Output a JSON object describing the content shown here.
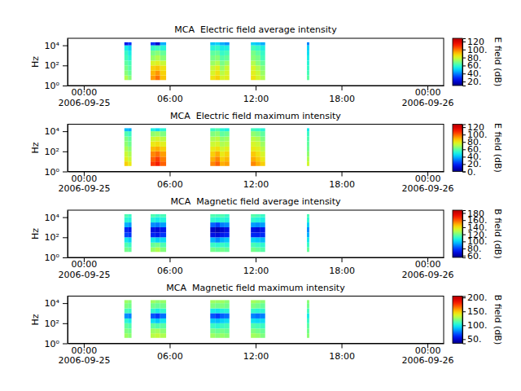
{
  "chart_data": [
    {
      "type": "heatmap",
      "title": "MCA  Electric field average intensity",
      "y_label": "Hz",
      "log": "y",
      "color": "jet",
      "xlim": [
        "2006-09-24T22:52",
        "2006-09-26T01:08"
      ],
      "xticks": [
        {
          "value": "2006-09-25T00:00",
          "label": "00:00\n2006-09-25"
        },
        {
          "value": "2006-09-25T06:00",
          "label": "06:00"
        },
        {
          "value": "2006-09-25T12:00",
          "label": "12:00"
        },
        {
          "value": "2006-09-25T18:00",
          "label": "18:00"
        },
        {
          "value": "2006-09-26T00:00",
          "label": "00:00\n2006-09-26"
        }
      ],
      "ylim": [
        1,
        50000
      ],
      "yticks": [
        {
          "value": 1,
          "label": "10⁰"
        },
        {
          "value": 100,
          "label": "10²"
        },
        {
          "value": 10000,
          "label": "10⁴"
        }
      ],
      "x": [
        "2006-09-25T02:50",
        "2006-09-25T03:05",
        "2006-09-25T04:40",
        "2006-09-25T05:00",
        "2006-09-25T05:20",
        "2006-09-25T08:50",
        "2006-09-25T09:10",
        "2006-09-25T09:30",
        "2006-09-25T09:50",
        "2006-09-25T11:40",
        "2006-09-25T12:00",
        "2006-09-25T12:20",
        "2006-09-25T15:35"
      ],
      "x_end": [
        "2006-09-25T03:05",
        "2006-09-25T03:20",
        "2006-09-25T05:00",
        "2006-09-25T05:20",
        "2006-09-25T05:45",
        "2006-09-25T09:10",
        "2006-09-25T09:30",
        "2006-09-25T09:50",
        "2006-09-25T10:10",
        "2006-09-25T12:00",
        "2006-09-25T12:20",
        "2006-09-25T12:40",
        "2006-09-25T15:45"
      ],
      "y_bins": [
        3.5,
        10,
        30,
        100,
        300,
        1000,
        3000,
        10000,
        20000
      ],
      "values": [
        [
          75,
          70,
          68,
          65,
          62,
          60,
          55,
          25
        ],
        [
          70,
          66,
          64,
          62,
          58,
          55,
          50,
          30
        ],
        [
          95,
          92,
          88,
          80,
          72,
          68,
          60,
          30
        ],
        [
          100,
          96,
          90,
          82,
          75,
          70,
          62,
          20
        ],
        [
          90,
          88,
          85,
          78,
          70,
          66,
          58,
          45
        ],
        [
          85,
          80,
          78,
          72,
          68,
          65,
          58,
          48
        ],
        [
          88,
          85,
          82,
          75,
          70,
          66,
          60,
          50
        ],
        [
          80,
          76,
          72,
          68,
          64,
          60,
          55,
          45
        ],
        [
          82,
          80,
          78,
          72,
          66,
          62,
          56,
          42
        ],
        [
          85,
          82,
          80,
          75,
          70,
          68,
          62,
          50
        ],
        [
          80,
          78,
          75,
          70,
          68,
          65,
          60,
          48
        ],
        [
          75,
          72,
          70,
          66,
          62,
          60,
          56,
          45
        ],
        [
          65,
          62,
          60,
          58,
          55,
          52,
          50,
          40
        ]
      ],
      "colorbar": {
        "label": "E field (dB)",
        "range": [
          10,
          128
        ],
        "ticks": [
          {
            "value": 20,
            "label": "20."
          },
          {
            "value": 40,
            "label": "40."
          },
          {
            "value": 60,
            "label": "60."
          },
          {
            "value": 80,
            "label": "80."
          },
          {
            "value": 100,
            "label": "100."
          },
          120
        ]
      }
    },
    {
      "type": "heatmap",
      "title": "MCA  Electric field maximum intensity",
      "y_label": "Hz",
      "log": "y",
      "color": "jet",
      "xlim": [
        "2006-09-24T22:52",
        "2006-09-26T01:08"
      ],
      "xticks": [
        {
          "value": "2006-09-25T00:00",
          "label": "00:00\n2006-09-25"
        },
        {
          "value": "2006-09-25T06:00",
          "label": "06:00"
        },
        {
          "value": "2006-09-25T12:00",
          "label": "12:00"
        },
        {
          "value": "2006-09-25T18:00",
          "label": "18:00"
        },
        {
          "value": "2006-09-26T00:00",
          "label": "00:00\n2006-09-26"
        }
      ],
      "ylim": [
        1,
        50000
      ],
      "yticks": [
        {
          "value": 1,
          "label": "10⁰"
        },
        {
          "value": 100,
          "label": "10²"
        },
        {
          "value": 10000,
          "label": "10⁴"
        }
      ],
      "x": [
        "2006-09-25T02:50",
        "2006-09-25T03:05",
        "2006-09-25T04:40",
        "2006-09-25T05:00",
        "2006-09-25T05:20",
        "2006-09-25T08:50",
        "2006-09-25T09:10",
        "2006-09-25T09:30",
        "2006-09-25T09:50",
        "2006-09-25T11:40",
        "2006-09-25T12:00",
        "2006-09-25T12:20",
        "2006-09-25T15:35"
      ],
      "x_end": [
        "2006-09-25T03:05",
        "2006-09-25T03:20",
        "2006-09-25T05:00",
        "2006-09-25T05:20",
        "2006-09-25T05:45",
        "2006-09-25T09:10",
        "2006-09-25T09:30",
        "2006-09-25T09:50",
        "2006-09-25T10:10",
        "2006-09-25T12:00",
        "2006-09-25T12:20",
        "2006-09-25T12:40",
        "2006-09-25T15:45"
      ],
      "y_bins": [
        3.5,
        10,
        30,
        100,
        300,
        1000,
        3000,
        10000,
        20000
      ],
      "values": [
        [
          85,
          78,
          74,
          70,
          66,
          64,
          58,
          40
        ],
        [
          80,
          74,
          70,
          66,
          62,
          60,
          55,
          38
        ],
        [
          105,
          100,
          95,
          88,
          80,
          74,
          66,
          50
        ],
        [
          110,
          105,
          98,
          90,
          82,
          76,
          68,
          45
        ],
        [
          100,
          96,
          92,
          85,
          78,
          72,
          64,
          52
        ],
        [
          95,
          90,
          85,
          80,
          74,
          70,
          64,
          55
        ],
        [
          100,
          95,
          90,
          82,
          76,
          72,
          66,
          58
        ],
        [
          90,
          85,
          80,
          75,
          70,
          66,
          60,
          52
        ],
        [
          92,
          88,
          84,
          78,
          72,
          68,
          62,
          50
        ],
        [
          95,
          90,
          86,
          80,
          76,
          72,
          66,
          56
        ],
        [
          90,
          86,
          82,
          78,
          74,
          70,
          64,
          54
        ],
        [
          85,
          80,
          76,
          72,
          68,
          64,
          60,
          52
        ],
        [
          75,
          70,
          66,
          62,
          60,
          58,
          55,
          48
        ]
      ],
      "colorbar": {
        "label": "E field (dB)",
        "range": [
          0,
          128
        ],
        "ticks": [
          {
            "value": 0,
            "label": "0."
          },
          {
            "value": 20,
            "label": "20."
          },
          {
            "value": 40,
            "label": "40."
          },
          {
            "value": 60,
            "label": "60."
          },
          {
            "value": 80,
            "label": "80."
          },
          {
            "value": 100,
            "label": "100."
          },
          120
        ]
      }
    },
    {
      "type": "heatmap",
      "title": "MCA  Magnetic field average intensity",
      "y_label": "Hz",
      "log": "y",
      "color": "jet",
      "xlim": [
        "2006-09-24T22:52",
        "2006-09-26T01:08"
      ],
      "xticks": [
        {
          "value": "2006-09-25T00:00",
          "label": "00:00\n2006-09-25"
        },
        {
          "value": "2006-09-25T06:00",
          "label": "06:00"
        },
        {
          "value": "2006-09-25T12:00",
          "label": "12:00"
        },
        {
          "value": "2006-09-25T18:00",
          "label": "18:00"
        },
        {
          "value": "2006-09-26T00:00",
          "label": "00:00\n2006-09-26"
        }
      ],
      "ylim": [
        1,
        50000
      ],
      "yticks": [
        {
          "value": 1,
          "label": "10⁰"
        },
        {
          "value": 100,
          "label": "10²"
        },
        {
          "value": 10000,
          "label": "10⁴"
        }
      ],
      "x": [
        "2006-09-25T02:50",
        "2006-09-25T03:05",
        "2006-09-25T04:40",
        "2006-09-25T05:00",
        "2006-09-25T05:20",
        "2006-09-25T08:50",
        "2006-09-25T09:10",
        "2006-09-25T09:30",
        "2006-09-25T09:50",
        "2006-09-25T11:40",
        "2006-09-25T12:00",
        "2006-09-25T12:20",
        "2006-09-25T15:35"
      ],
      "x_end": [
        "2006-09-25T03:05",
        "2006-09-25T03:20",
        "2006-09-25T05:00",
        "2006-09-25T05:20",
        "2006-09-25T05:45",
        "2006-09-25T09:10",
        "2006-09-25T09:30",
        "2006-09-25T09:50",
        "2006-09-25T10:10",
        "2006-09-25T12:00",
        "2006-09-25T12:20",
        "2006-09-25T12:40",
        "2006-09-25T15:45"
      ],
      "y_bins": [
        3.5,
        10,
        30,
        100,
        300,
        1000,
        3000,
        10000,
        20000
      ],
      "values": [
        [
          120,
          115,
          105,
          80,
          75,
          95,
          110,
          115
        ],
        [
          118,
          112,
          100,
          78,
          72,
          92,
          108,
          112
        ],
        [
          125,
          118,
          105,
          75,
          70,
          90,
          108,
          115
        ],
        [
          128,
          120,
          100,
          72,
          68,
          88,
          105,
          112
        ],
        [
          122,
          115,
          102,
          78,
          72,
          92,
          108,
          114
        ],
        [
          120,
          112,
          95,
          70,
          65,
          85,
          110,
          115
        ],
        [
          118,
          110,
          90,
          68,
          62,
          80,
          108,
          114
        ],
        [
          120,
          112,
          95,
          72,
          66,
          88,
          110,
          115
        ],
        [
          118,
          110,
          98,
          75,
          70,
          90,
          108,
          112
        ],
        [
          120,
          114,
          100,
          75,
          70,
          92,
          110,
          116
        ],
        [
          118,
          112,
          98,
          74,
          68,
          90,
          108,
          114
        ],
        [
          116,
          110,
          96,
          76,
          72,
          92,
          106,
          112
        ],
        [
          118,
          112,
          105,
          95,
          90,
          100,
          110,
          114
        ]
      ],
      "colorbar": {
        "label": "B field (dB)",
        "range": [
          55,
          188
        ],
        "ticks": [
          {
            "value": 60,
            "label": "60."
          },
          {
            "value": 80,
            "label": "80."
          },
          {
            "value": 100,
            "label": "100."
          },
          {
            "value": 120,
            "label": "120."
          },
          {
            "value": 140,
            "label": "140."
          },
          {
            "value": 160,
            "label": "160."
          },
          180
        ]
      }
    },
    {
      "type": "heatmap",
      "title": "MCA  Magnetic field maximum intensity",
      "y_label": "Hz",
      "log": "y",
      "color": "jet",
      "xlim": [
        "2006-09-24T22:52",
        "2006-09-26T01:08"
      ],
      "xticks": [
        {
          "value": "2006-09-25T00:00",
          "label": "00:00\n2006-09-25"
        },
        {
          "value": "2006-09-25T06:00",
          "label": "06:00"
        },
        {
          "value": "2006-09-25T12:00",
          "label": "12:00"
        },
        {
          "value": "2006-09-25T18:00",
          "label": "18:00"
        },
        {
          "value": "2006-09-26T00:00",
          "label": "00:00\n2006-09-26"
        }
      ],
      "ylim": [
        1,
        50000
      ],
      "yticks": [
        {
          "value": 1,
          "label": "10⁰"
        },
        {
          "value": 100,
          "label": "10²"
        },
        {
          "value": 10000,
          "label": "10⁴"
        }
      ],
      "x": [
        "2006-09-25T02:50",
        "2006-09-25T03:05",
        "2006-09-25T04:40",
        "2006-09-25T05:00",
        "2006-09-25T05:20",
        "2006-09-25T08:50",
        "2006-09-25T09:10",
        "2006-09-25T09:30",
        "2006-09-25T09:50",
        "2006-09-25T11:40",
        "2006-09-25T12:00",
        "2006-09-25T12:20",
        "2006-09-25T15:35"
      ],
      "x_end": [
        "2006-09-25T03:05",
        "2006-09-25T03:20",
        "2006-09-25T05:00",
        "2006-09-25T05:20",
        "2006-09-25T05:45",
        "2006-09-25T09:10",
        "2006-09-25T09:30",
        "2006-09-25T09:50",
        "2006-09-25T10:10",
        "2006-09-25T12:00",
        "2006-09-25T12:20",
        "2006-09-25T12:40",
        "2006-09-25T15:45"
      ],
      "y_bins": [
        3.5,
        10,
        30,
        100,
        300,
        1000,
        3000,
        10000,
        20000
      ],
      "values": [
        [
          125,
          120,
          115,
          105,
          80,
          110,
          120,
          125
        ],
        [
          122,
          118,
          112,
          100,
          78,
          108,
          118,
          122
        ],
        [
          130,
          125,
          115,
          95,
          70,
          105,
          118,
          125
        ],
        [
          132,
          126,
          112,
          90,
          65,
          100,
          116,
          122
        ],
        [
          128,
          122,
          114,
          98,
          75,
          106,
          118,
          124
        ],
        [
          125,
          118,
          108,
          90,
          70,
          100,
          120,
          125
        ],
        [
          122,
          116,
          105,
          88,
          65,
          98,
          118,
          124
        ],
        [
          124,
          118,
          108,
          92,
          72,
          102,
          120,
          125
        ],
        [
          122,
          116,
          110,
          95,
          75,
          104,
          118,
          122
        ],
        [
          126,
          120,
          112,
          96,
          78,
          106,
          120,
          126
        ],
        [
          124,
          118,
          110,
          94,
          75,
          104,
          118,
          124
        ],
        [
          120,
          116,
          108,
          95,
          78,
          105,
          116,
          122
        ],
        [
          122,
          118,
          114,
          108,
          100,
          110,
          118,
          122
        ]
      ],
      "colorbar": {
        "label": "B field (dB)",
        "range": [
          35,
          205
        ],
        "ticks": [
          {
            "value": 50,
            "label": "50."
          },
          {
            "value": 100,
            "label": "100."
          },
          {
            "value": 150,
            "label": "150."
          },
          {
            "value": 200,
            "label": "200."
          }
        ]
      }
    }
  ]
}
